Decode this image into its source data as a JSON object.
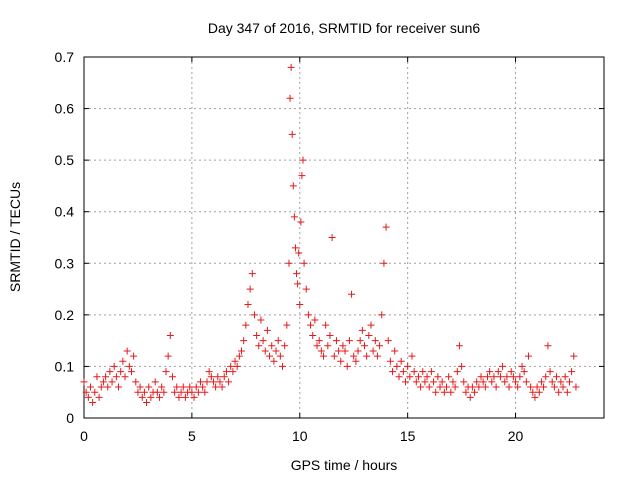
{
  "chart_data": {
    "type": "scatter",
    "title": "Day 347 of 2016, SRMTID for receiver sun6",
    "xlabel": "GPS time / hours",
    "ylabel": "SRMTID / TECUs",
    "xlim": [
      0,
      24.1
    ],
    "ylim": [
      0,
      0.7
    ],
    "xticks": [
      0,
      5,
      10,
      15,
      20
    ],
    "yticks": [
      0,
      0.1,
      0.2,
      0.3,
      0.4,
      0.5,
      0.6,
      0.7
    ],
    "xtick_labels": [
      "0",
      "5",
      "10",
      "15",
      "20"
    ],
    "ytick_labels": [
      "0",
      "0.1",
      "0.2",
      "0.3",
      "0.4",
      "0.5",
      "0.6",
      "0.7"
    ],
    "grid": true,
    "marker": "+",
    "color": "#e41a1c",
    "x_range_of_points": [
      0.0,
      22.8
    ],
    "series": [
      {
        "name": "SRMTID",
        "points": [
          [
            0.0,
            0.07
          ],
          [
            0.1,
            0.05
          ],
          [
            0.2,
            0.04
          ],
          [
            0.3,
            0.06
          ],
          [
            0.4,
            0.03
          ],
          [
            0.5,
            0.05
          ],
          [
            0.6,
            0.08
          ],
          [
            0.7,
            0.04
          ],
          [
            0.8,
            0.06
          ],
          [
            0.9,
            0.07
          ],
          [
            1.0,
            0.08
          ],
          [
            1.1,
            0.06
          ],
          [
            1.2,
            0.09
          ],
          [
            1.3,
            0.07
          ],
          [
            1.4,
            0.1
          ],
          [
            1.5,
            0.08
          ],
          [
            1.6,
            0.06
          ],
          [
            1.7,
            0.09
          ],
          [
            1.8,
            0.11
          ],
          [
            1.9,
            0.08
          ],
          [
            2.0,
            0.13
          ],
          [
            2.1,
            0.1
          ],
          [
            2.2,
            0.09
          ],
          [
            2.3,
            0.12
          ],
          [
            2.4,
            0.07
          ],
          [
            2.5,
            0.05
          ],
          [
            2.6,
            0.06
          ],
          [
            2.7,
            0.04
          ],
          [
            2.8,
            0.05
          ],
          [
            2.9,
            0.03
          ],
          [
            3.0,
            0.06
          ],
          [
            3.1,
            0.04
          ],
          [
            3.2,
            0.05
          ],
          [
            3.3,
            0.07
          ],
          [
            3.4,
            0.05
          ],
          [
            3.5,
            0.04
          ],
          [
            3.6,
            0.06
          ],
          [
            3.7,
            0.05
          ],
          [
            3.8,
            0.09
          ],
          [
            3.9,
            0.12
          ],
          [
            4.0,
            0.16
          ],
          [
            4.1,
            0.08
          ],
          [
            4.2,
            0.05
          ],
          [
            4.3,
            0.06
          ],
          [
            4.4,
            0.04
          ],
          [
            4.5,
            0.05
          ],
          [
            4.6,
            0.06
          ],
          [
            4.7,
            0.04
          ],
          [
            4.8,
            0.05
          ],
          [
            4.9,
            0.06
          ],
          [
            5.0,
            0.05
          ],
          [
            5.1,
            0.04
          ],
          [
            5.2,
            0.06
          ],
          [
            5.3,
            0.05
          ],
          [
            5.4,
            0.07
          ],
          [
            5.5,
            0.06
          ],
          [
            5.6,
            0.05
          ],
          [
            5.7,
            0.07
          ],
          [
            5.8,
            0.09
          ],
          [
            5.9,
            0.08
          ],
          [
            6.0,
            0.07
          ],
          [
            6.1,
            0.06
          ],
          [
            6.2,
            0.08
          ],
          [
            6.3,
            0.07
          ],
          [
            6.4,
            0.06
          ],
          [
            6.5,
            0.08
          ],
          [
            6.6,
            0.09
          ],
          [
            6.7,
            0.07
          ],
          [
            6.8,
            0.1
          ],
          [
            6.9,
            0.09
          ],
          [
            7.0,
            0.11
          ],
          [
            7.1,
            0.1
          ],
          [
            7.2,
            0.12
          ],
          [
            7.3,
            0.13
          ],
          [
            7.4,
            0.15
          ],
          [
            7.5,
            0.18
          ],
          [
            7.6,
            0.22
          ],
          [
            7.7,
            0.25
          ],
          [
            7.8,
            0.28
          ],
          [
            7.9,
            0.2
          ],
          [
            8.0,
            0.16
          ],
          [
            8.1,
            0.14
          ],
          [
            8.2,
            0.19
          ],
          [
            8.3,
            0.15
          ],
          [
            8.4,
            0.13
          ],
          [
            8.5,
            0.17
          ],
          [
            8.6,
            0.12
          ],
          [
            8.7,
            0.14
          ],
          [
            8.8,
            0.11
          ],
          [
            8.9,
            0.13
          ],
          [
            9.0,
            0.15
          ],
          [
            9.1,
            0.12
          ],
          [
            9.2,
            0.1
          ],
          [
            9.3,
            0.14
          ],
          [
            9.4,
            0.18
          ],
          [
            9.5,
            0.3
          ],
          [
            9.55,
            0.62
          ],
          [
            9.6,
            0.68
          ],
          [
            9.65,
            0.55
          ],
          [
            9.7,
            0.45
          ],
          [
            9.75,
            0.39
          ],
          [
            9.8,
            0.33
          ],
          [
            9.85,
            0.28
          ],
          [
            9.9,
            0.26
          ],
          [
            9.95,
            0.32
          ],
          [
            10.0,
            0.22
          ],
          [
            10.05,
            0.38
          ],
          [
            10.1,
            0.47
          ],
          [
            10.15,
            0.5
          ],
          [
            10.2,
            0.3
          ],
          [
            10.3,
            0.25
          ],
          [
            10.4,
            0.2
          ],
          [
            10.5,
            0.18
          ],
          [
            10.6,
            0.16
          ],
          [
            10.7,
            0.19
          ],
          [
            10.8,
            0.14
          ],
          [
            10.9,
            0.15
          ],
          [
            11.0,
            0.13
          ],
          [
            11.1,
            0.12
          ],
          [
            11.2,
            0.18
          ],
          [
            11.3,
            0.14
          ],
          [
            11.4,
            0.16
          ],
          [
            11.5,
            0.35
          ],
          [
            11.6,
            0.12
          ],
          [
            11.7,
            0.15
          ],
          [
            11.8,
            0.13
          ],
          [
            11.9,
            0.11
          ],
          [
            12.0,
            0.14
          ],
          [
            12.1,
            0.13
          ],
          [
            12.2,
            0.1
          ],
          [
            12.3,
            0.15
          ],
          [
            12.4,
            0.24
          ],
          [
            12.5,
            0.12
          ],
          [
            12.6,
            0.11
          ],
          [
            12.7,
            0.13
          ],
          [
            12.8,
            0.15
          ],
          [
            12.9,
            0.17
          ],
          [
            13.0,
            0.14
          ],
          [
            13.1,
            0.12
          ],
          [
            13.2,
            0.16
          ],
          [
            13.3,
            0.18
          ],
          [
            13.4,
            0.13
          ],
          [
            13.5,
            0.15
          ],
          [
            13.6,
            0.12
          ],
          [
            13.7,
            0.14
          ],
          [
            13.8,
            0.2
          ],
          [
            13.9,
            0.3
          ],
          [
            14.0,
            0.37
          ],
          [
            14.1,
            0.15
          ],
          [
            14.2,
            0.11
          ],
          [
            14.3,
            0.09
          ],
          [
            14.4,
            0.13
          ],
          [
            14.5,
            0.1
          ],
          [
            14.6,
            0.08
          ],
          [
            14.7,
            0.11
          ],
          [
            14.8,
            0.09
          ],
          [
            14.9,
            0.07
          ],
          [
            15.0,
            0.1
          ],
          [
            15.1,
            0.08
          ],
          [
            15.2,
            0.12
          ],
          [
            15.3,
            0.09
          ],
          [
            15.4,
            0.07
          ],
          [
            15.5,
            0.08
          ],
          [
            15.6,
            0.06
          ],
          [
            15.7,
            0.09
          ],
          [
            15.8,
            0.07
          ],
          [
            15.9,
            0.08
          ],
          [
            16.0,
            0.06
          ],
          [
            16.1,
            0.09
          ],
          [
            16.2,
            0.07
          ],
          [
            16.3,
            0.05
          ],
          [
            16.4,
            0.08
          ],
          [
            16.5,
            0.06
          ],
          [
            16.6,
            0.07
          ],
          [
            16.7,
            0.05
          ],
          [
            16.8,
            0.06
          ],
          [
            16.9,
            0.08
          ],
          [
            17.0,
            0.05
          ],
          [
            17.1,
            0.07
          ],
          [
            17.2,
            0.06
          ],
          [
            17.3,
            0.09
          ],
          [
            17.4,
            0.14
          ],
          [
            17.5,
            0.1
          ],
          [
            17.6,
            0.07
          ],
          [
            17.7,
            0.05
          ],
          [
            17.8,
            0.06
          ],
          [
            17.9,
            0.04
          ],
          [
            18.0,
            0.06
          ],
          [
            18.1,
            0.05
          ],
          [
            18.2,
            0.07
          ],
          [
            18.3,
            0.06
          ],
          [
            18.4,
            0.08
          ],
          [
            18.5,
            0.07
          ],
          [
            18.6,
            0.06
          ],
          [
            18.7,
            0.08
          ],
          [
            18.8,
            0.09
          ],
          [
            18.9,
            0.07
          ],
          [
            19.0,
            0.08
          ],
          [
            19.1,
            0.06
          ],
          [
            19.2,
            0.09
          ],
          [
            19.3,
            0.08
          ],
          [
            19.4,
            0.1
          ],
          [
            19.5,
            0.07
          ],
          [
            19.6,
            0.08
          ],
          [
            19.7,
            0.06
          ],
          [
            19.8,
            0.09
          ],
          [
            19.9,
            0.08
          ],
          [
            20.0,
            0.07
          ],
          [
            20.1,
            0.06
          ],
          [
            20.2,
            0.08
          ],
          [
            20.3,
            0.1
          ],
          [
            20.4,
            0.09
          ],
          [
            20.5,
            0.07
          ],
          [
            20.6,
            0.12
          ],
          [
            20.7,
            0.06
          ],
          [
            20.8,
            0.05
          ],
          [
            20.9,
            0.04
          ],
          [
            21.0,
            0.06
          ],
          [
            21.1,
            0.05
          ],
          [
            21.2,
            0.07
          ],
          [
            21.3,
            0.06
          ],
          [
            21.4,
            0.08
          ],
          [
            21.5,
            0.14
          ],
          [
            21.6,
            0.09
          ],
          [
            21.7,
            0.07
          ],
          [
            21.8,
            0.06
          ],
          [
            21.9,
            0.08
          ],
          [
            22.0,
            0.05
          ],
          [
            22.1,
            0.07
          ],
          [
            22.2,
            0.06
          ],
          [
            22.3,
            0.08
          ],
          [
            22.4,
            0.05
          ],
          [
            22.5,
            0.07
          ],
          [
            22.6,
            0.09
          ],
          [
            22.7,
            0.12
          ],
          [
            22.8,
            0.06
          ]
        ]
      }
    ]
  }
}
